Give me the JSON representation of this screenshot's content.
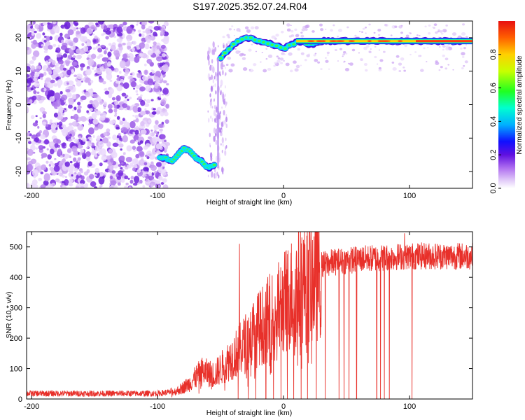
{
  "title": "S197.2025.352.07.24.R04",
  "chart_data": [
    {
      "type": "heatmap",
      "name": "spectrogram",
      "xlabel": "Height of straight line (km)",
      "ylabel": "Frequency (Hz)",
      "xlim": [
        -204,
        150
      ],
      "ylim": [
        -25,
        25
      ],
      "xticks": [
        -200,
        -100,
        0,
        100
      ],
      "yticks": [
        -20,
        -10,
        0,
        10,
        20
      ],
      "colorbar": {
        "label": "Normalized spectral amplitude",
        "range": [
          0,
          1
        ],
        "ticks": [
          0.0,
          0.2,
          0.4,
          0.6,
          0.8
        ]
      },
      "ridge": {
        "segments": [
          {
            "x_start": -98,
            "x_end": -55,
            "freq_hz": [
              -16,
              -16,
              -17,
              -15,
              -13,
              -14,
              -16,
              -17,
              -19,
              -18
            ]
          },
          {
            "x_start": -50,
            "x_end": 145,
            "freq_hz": [
              14,
              18,
              20,
              19,
              18,
              17,
              19,
              18,
              19,
              19,
              19,
              19,
              19,
              19,
              19,
              19,
              19,
              19,
              19,
              19
            ]
          }
        ]
      },
      "noise_region": [
        -204,
        -92
      ]
    },
    {
      "type": "line",
      "name": "snr",
      "xlabel": "Height of straight line (km)",
      "ylabel": "SNR (10 * v/v)",
      "xlim": [
        -204,
        150
      ],
      "ylim": [
        0,
        550
      ],
      "xticks": [
        -200,
        -100,
        0,
        100
      ],
      "yticks": [
        0,
        100,
        200,
        300,
        400,
        500
      ],
      "series": [
        {
          "name": "SNR",
          "color": "#e8302a",
          "trend_x": [
            -204,
            -150,
            -100,
            -85,
            -75,
            -65,
            -55,
            -45,
            -35,
            -25,
            -15,
            -5,
            5,
            15,
            25,
            30,
            40,
            60,
            80,
            100,
            120,
            150
          ],
          "trend_y": [
            18,
            18,
            18,
            25,
            50,
            90,
            80,
            120,
            160,
            210,
            250,
            290,
            340,
            380,
            400,
            440,
            450,
            460,
            465,
            470,
            470,
            470
          ],
          "dropouts_x": [
            -36,
            -28,
            -22,
            -14,
            -8,
            -2,
            3,
            8,
            14,
            19,
            26,
            33,
            44,
            48,
            52,
            58,
            74,
            77,
            80,
            84,
            102
          ],
          "spikes": [
            {
              "x": -35,
              "y": 510
            },
            {
              "x": 96,
              "y": 545
            }
          ]
        }
      ]
    }
  ]
}
